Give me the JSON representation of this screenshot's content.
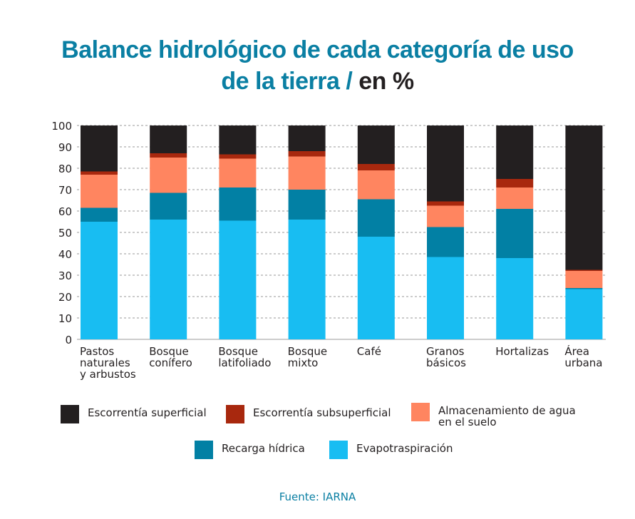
{
  "title": {
    "line1": "Balance hidrológico de cada categoría de uso",
    "line2": "de la tierra / ",
    "unit": "en %"
  },
  "source": "Fuente: IARNA",
  "colors": {
    "Escorrentía superficial": "#231f20",
    "Escorrentía subsuperficial": "#a8280e",
    "Almacenamiento de agua en el suelo": "#ff8560",
    "Recarga hídrica": "#0280a4",
    "Evapotraspiración": "#18bdf2"
  },
  "legend": [
    {
      "label": "Escorrentía superficial",
      "color": "#231f20"
    },
    {
      "label": "Escorrentía subsuperficial",
      "color": "#a8280e"
    },
    {
      "label": "Almacenamiento de agua\nen el suelo",
      "color": "#ff8560"
    },
    {
      "label": "Recarga hídrica",
      "color": "#0280a4"
    },
    {
      "label": "Evapotraspiración",
      "color": "#18bdf2"
    }
  ],
  "chart_data": {
    "type": "bar",
    "stacked": true,
    "categories": [
      "Pastos\nnaturales\ny arbustos",
      "Bosque\nconífero",
      "Bosque\nlatifoliado",
      "Bosque\nmixto",
      "Café",
      "Granos\nbásicos",
      "Hortalizas",
      "Área\nurbana"
    ],
    "series": [
      {
        "name": "Evapotraspiración",
        "values": [
          55,
          56,
          55.5,
          56,
          48,
          38.5,
          38,
          23.5
        ]
      },
      {
        "name": "Recarga hídrica",
        "values": [
          6.5,
          12.5,
          15.5,
          14,
          17.5,
          14,
          23,
          0.5
        ]
      },
      {
        "name": "Almacenamiento de agua en el suelo",
        "values": [
          15.5,
          16.5,
          13.5,
          15.5,
          13.5,
          10,
          10,
          8
        ]
      },
      {
        "name": "Escorrentía subsuperficial",
        "values": [
          1.5,
          2,
          2,
          2.5,
          3,
          2,
          4,
          0.5
        ]
      },
      {
        "name": "Escorrentía superficial",
        "values": [
          21.5,
          13,
          13.5,
          12,
          18,
          35.5,
          25,
          67.5
        ]
      }
    ],
    "yticks": [
      0,
      10,
      20,
      30,
      40,
      50,
      60,
      70,
      80,
      90,
      100
    ],
    "ylim": [
      0,
      100
    ],
    "grid": true,
    "legend_position": "bottom"
  }
}
